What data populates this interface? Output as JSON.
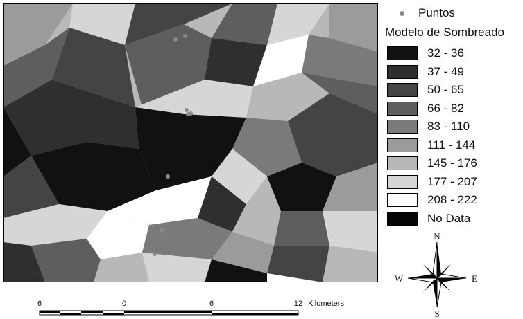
{
  "legend": {
    "points_label": "Puntos",
    "title": "Modelo de Sombreado",
    "items": [
      {
        "label": "32 - 36",
        "color": "#111111"
      },
      {
        "label": "37 - 49",
        "color": "#2f2f2f"
      },
      {
        "label": "50 - 65",
        "color": "#444444"
      },
      {
        "label": "66 - 82",
        "color": "#5e5e5e"
      },
      {
        "label": "83 - 110",
        "color": "#7a7a7a"
      },
      {
        "label": "111 - 144",
        "color": "#9b9b9b"
      },
      {
        "label": "145 - 176",
        "color": "#b8b8b8"
      },
      {
        "label": "177 - 207",
        "color": "#d6d6d6"
      },
      {
        "label": "208 - 222",
        "color": "#ffffff"
      },
      {
        "label": "No Data",
        "color": "#050505"
      }
    ]
  },
  "compass": {
    "n": "N",
    "s": "S",
    "e": "E",
    "w": "W"
  },
  "scalebar": {
    "ticks": [
      "6",
      "0",
      "6",
      "12"
    ],
    "units": "Kilometers"
  },
  "colors": {
    "point": "#888888",
    "map_border": "#000000"
  }
}
